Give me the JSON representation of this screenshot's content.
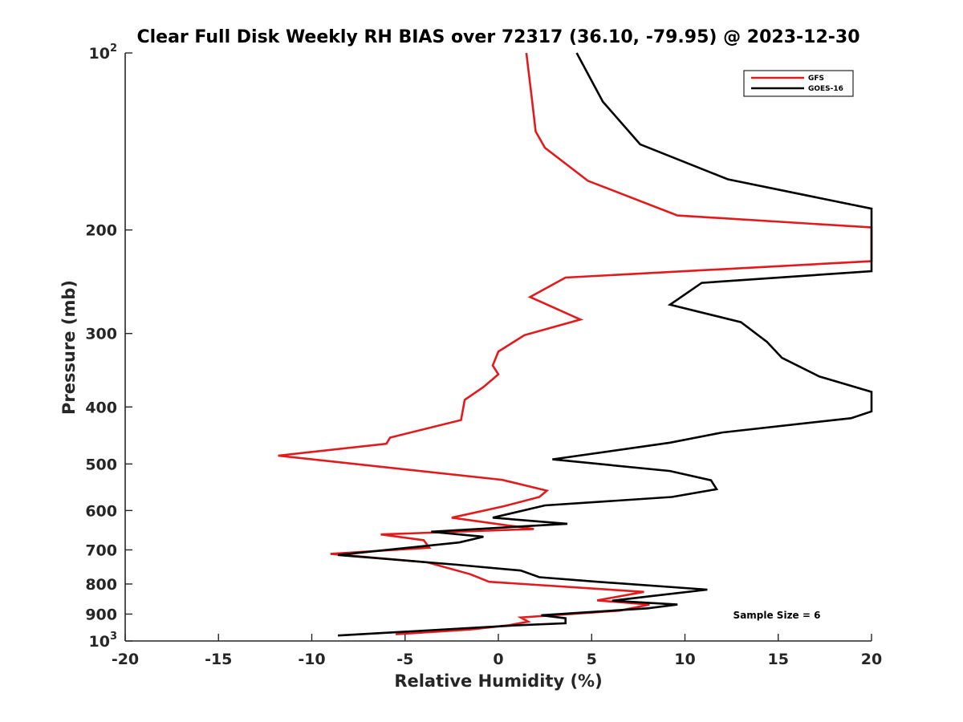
{
  "chart_data": {
    "type": "line",
    "title": "Clear Full Disk Weekly RH BIAS over 72317 (36.10, -79.95) @ 2023-12-30",
    "xlabel": "Relative Humidity (%)",
    "ylabel": "Pressure (mb)",
    "xlim": [
      -20,
      20
    ],
    "ylim": [
      100,
      1000
    ],
    "y_scale": "log",
    "y_reversed": true,
    "grid": false,
    "legend_position": "top-right",
    "x_ticks": [
      -20,
      -15,
      -10,
      -5,
      0,
      5,
      10,
      15,
      20
    ],
    "x_tick_labels": [
      "-20",
      "-15",
      "-10",
      "-5",
      "0",
      "5",
      "10",
      "15",
      "20"
    ],
    "y_ticks": [
      100,
      200,
      300,
      400,
      500,
      600,
      700,
      800,
      900,
      1000
    ],
    "y_tick_labels": [
      {
        "base": "10",
        "exp": "2"
      },
      {
        "base": "200",
        "exp": ""
      },
      {
        "base": "300",
        "exp": ""
      },
      {
        "base": "400",
        "exp": ""
      },
      {
        "base": "500",
        "exp": ""
      },
      {
        "base": "600",
        "exp": ""
      },
      {
        "base": "700",
        "exp": ""
      },
      {
        "base": "800",
        "exp": ""
      },
      {
        "base": "900",
        "exp": ""
      },
      {
        "base": "10",
        "exp": "3"
      }
    ],
    "annotation": "Sample Size = 6",
    "series": [
      {
        "name": "GFS",
        "color": "#e31a1c",
        "points": [
          [
            1.5,
            100
          ],
          [
            1.8,
            120
          ],
          [
            2.0,
            136
          ],
          [
            2.5,
            145
          ],
          [
            4.8,
            165
          ],
          [
            9.6,
            189
          ],
          [
            20,
            198
          ],
          [
            20,
            226
          ],
          [
            3.6,
            241
          ],
          [
            1.7,
            260
          ],
          [
            4.4,
            284
          ],
          [
            1.4,
            302
          ],
          [
            0,
            322
          ],
          [
            -0.3,
            340
          ],
          [
            0,
            352
          ],
          [
            -0.8,
            370
          ],
          [
            -1.8,
            389
          ],
          [
            -2.0,
            421
          ],
          [
            -5.8,
            451
          ],
          [
            -6.0,
            462
          ],
          [
            -11.8,
            484
          ],
          [
            0.2,
            532
          ],
          [
            2.6,
            555
          ],
          [
            2.2,
            569
          ],
          [
            0.3,
            590
          ],
          [
            -2.5,
            617
          ],
          [
            1.9,
            645
          ],
          [
            -6.3,
            659
          ],
          [
            -4.0,
            674
          ],
          [
            -3.7,
            694
          ],
          [
            -9.0,
            711
          ],
          [
            -3.8,
            735
          ],
          [
            -1.5,
            770
          ],
          [
            -0.5,
            793
          ],
          [
            7.8,
            825
          ],
          [
            5.3,
            853
          ],
          [
            8.1,
            867
          ],
          [
            6.5,
            888
          ],
          [
            1.2,
            912
          ],
          [
            1.6,
            927
          ],
          [
            0.5,
            941
          ],
          [
            -1.5,
            956
          ],
          [
            -5.5,
            974
          ]
        ]
      },
      {
        "name": "GOES-16",
        "color": "#000000",
        "points": [
          [
            4.2,
            100
          ],
          [
            5.6,
            121
          ],
          [
            7.6,
            143
          ],
          [
            12.3,
            164
          ],
          [
            20,
            184
          ],
          [
            20,
            235
          ],
          [
            10.9,
            246
          ],
          [
            9.2,
            268
          ],
          [
            13.0,
            287
          ],
          [
            14.4,
            310
          ],
          [
            15.2,
            330
          ],
          [
            17.2,
            355
          ],
          [
            20,
            377
          ],
          [
            20,
            407
          ],
          [
            18.9,
            418
          ],
          [
            12.0,
            442
          ],
          [
            9.2,
            460
          ],
          [
            2.9,
            491
          ],
          [
            9.2,
            514
          ],
          [
            11.4,
            533
          ],
          [
            11.7,
            552
          ],
          [
            9.3,
            569
          ],
          [
            2.5,
            588
          ],
          [
            -0.3,
            617
          ],
          [
            3.7,
            632
          ],
          [
            -3.6,
            652
          ],
          [
            -0.8,
            665
          ],
          [
            -2.1,
            680
          ],
          [
            -8.6,
            714
          ],
          [
            -2.2,
            742
          ],
          [
            1.2,
            759
          ],
          [
            2.2,
            779
          ],
          [
            5.3,
            793
          ],
          [
            11.2,
            818
          ],
          [
            8.2,
            839
          ],
          [
            6.1,
            854
          ],
          [
            9.6,
            867
          ],
          [
            8.0,
            880
          ],
          [
            2.3,
            904
          ],
          [
            3.6,
            915
          ],
          [
            3.6,
            933
          ],
          [
            0.9,
            941
          ],
          [
            -8.6,
            979
          ]
        ]
      }
    ]
  }
}
